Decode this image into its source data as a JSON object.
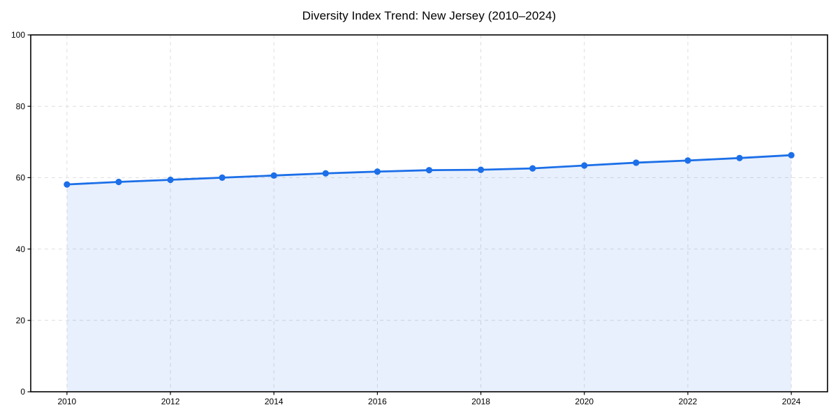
{
  "chart_data": {
    "type": "line",
    "title": "Diversity Index Trend: New Jersey (2010–2024)",
    "x": [
      2010,
      2011,
      2012,
      2013,
      2014,
      2015,
      2016,
      2017,
      2018,
      2019,
      2020,
      2021,
      2022,
      2023,
      2024
    ],
    "series": [
      {
        "name": "Diversity Index",
        "values": [
          58.1,
          58.8,
          59.4,
          60.0,
          60.6,
          61.2,
          61.7,
          62.1,
          62.2,
          62.6,
          63.4,
          64.2,
          64.8,
          65.5,
          66.3
        ]
      }
    ],
    "xlabel": "",
    "ylabel": "",
    "xlim": [
      2009.3,
      2024.7
    ],
    "ylim": [
      0,
      100
    ],
    "xticks": [
      2010,
      2012,
      2014,
      2016,
      2018,
      2020,
      2022,
      2024
    ],
    "yticks": [
      0,
      20,
      40,
      60,
      80,
      100
    ],
    "grid": true,
    "grid_style": "dashed",
    "legend": "none",
    "marker": "circle",
    "colors": {
      "line": "#1c6fe8",
      "fill": "#1c6fe8",
      "grid": "#dedede",
      "spine": "#000000",
      "tick_text": "#000000",
      "title_text": "#000000",
      "background": "#ffffff"
    },
    "fill_opacity": 0.1
  }
}
